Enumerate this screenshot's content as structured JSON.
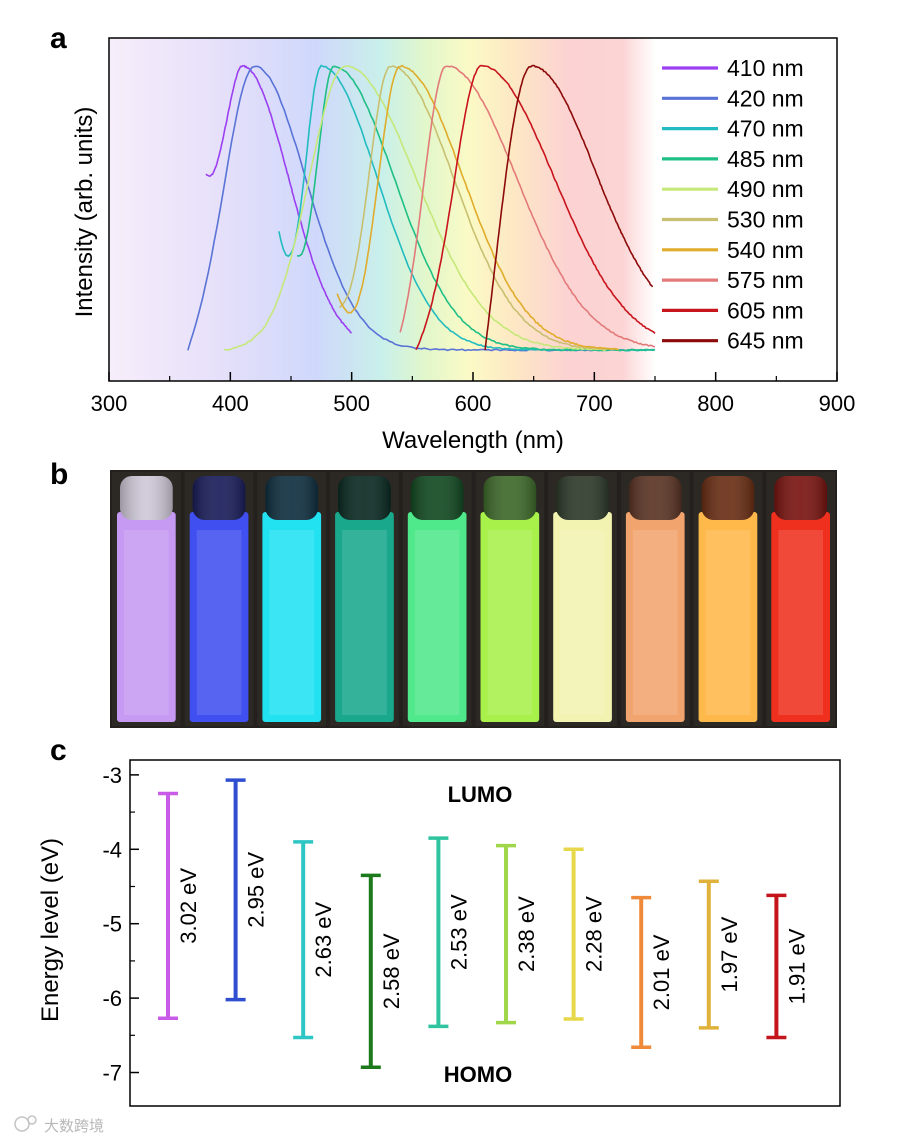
{
  "panels": {
    "a": "a",
    "b": "b",
    "c": "c"
  },
  "colors": {
    "410 nm": "#9b3ff0",
    "420 nm": "#5a73d6",
    "470 nm": "#22bcc0",
    "485 nm": "#1fbf86",
    "490 nm": "#c6e87a",
    "530 nm": "#c8c070",
    "540 nm": "#e0ac2c",
    "575 nm": "#e27a7a",
    "605 nm": "#c8141c",
    "645 nm": "#8c0a0a"
  },
  "chart_data": [
    {
      "type": "line",
      "panel": "a",
      "xlabel": "Wavelength (nm)",
      "ylabel": "Intensity (arb. units)",
      "xlim": [
        300,
        900
      ],
      "xticks": [
        300,
        400,
        500,
        600,
        700,
        800,
        900
      ],
      "x_minor_step": 50,
      "background": "visible-spectrum gradient from 300 to 750 nm",
      "legend_position": "top-right",
      "series": [
        {
          "name": "410 nm",
          "peak": 410,
          "start": 380,
          "end": 500,
          "start_level": 0.62,
          "end_level": 0.0,
          "sigma_left": 18,
          "sigma_right": 38
        },
        {
          "name": "420 nm",
          "peak": 420,
          "start": 365,
          "end": 750,
          "start_level": 0.0,
          "end_level": 0.0,
          "sigma_left": 24,
          "sigma_right": 42
        },
        {
          "name": "470 nm",
          "peak": 475,
          "start": 440,
          "end": 750,
          "start_level": 0.42,
          "end_level": 0.0,
          "sigma_left": 14,
          "sigma_right": 46
        },
        {
          "name": "485 nm",
          "peak": 485,
          "start": 455,
          "end": 750,
          "start_level": 0.33,
          "end_level": 0.0,
          "sigma_left": 14,
          "sigma_right": 50
        },
        {
          "name": "490 nm",
          "peak": 495,
          "start": 395,
          "end": 710,
          "start_level": 0.0,
          "end_level": 0.0,
          "sigma_left": 30,
          "sigma_right": 58
        },
        {
          "name": "530 nm",
          "peak": 532,
          "start": 490,
          "end": 720,
          "start_level": 0.15,
          "end_level": 0.0,
          "sigma_left": 18,
          "sigma_right": 52
        },
        {
          "name": "540 nm",
          "peak": 540,
          "start": 488,
          "end": 720,
          "start_level": 0.2,
          "end_level": 0.0,
          "sigma_left": 18,
          "sigma_right": 52
        },
        {
          "name": "575 nm",
          "peak": 578,
          "start": 540,
          "end": 750,
          "start_level": 0.06,
          "end_level": 0.0,
          "sigma_left": 18,
          "sigma_right": 58
        },
        {
          "name": "605 nm",
          "peak": 607,
          "start": 553,
          "end": 750,
          "start_level": 0.0,
          "end_level": 0.0,
          "sigma_left": 22,
          "sigma_right": 60
        },
        {
          "name": "645 nm",
          "peak": 648,
          "start": 610,
          "end": 748,
          "start_level": 0.0,
          "end_level": 0.03,
          "sigma_left": 22,
          "sigma_right": 55
        }
      ]
    },
    {
      "type": "bar",
      "panel": "c",
      "ylabel": "Energy level (eV)",
      "ylim": [
        -7.45,
        -2.8
      ],
      "yticks": [
        -3,
        -4,
        -5,
        -6,
        -7
      ],
      "yticklabels": [
        "-3",
        "-4",
        "-5",
        "-6",
        "-7"
      ],
      "annotations": [
        "LUMO",
        "HOMO"
      ],
      "bars": [
        {
          "series": "410 nm",
          "lumo": -3.25,
          "homo": -6.27,
          "gap": "3.02 eV"
        },
        {
          "series": "420 nm",
          "lumo": -3.07,
          "homo": -6.02,
          "gap": "2.95 eV"
        },
        {
          "series": "470 nm",
          "lumo": -3.9,
          "homo": -6.53,
          "gap": "2.63 eV"
        },
        {
          "series": "485 nm",
          "lumo": -4.35,
          "homo": -6.93,
          "gap": "2.58 eV"
        },
        {
          "series": "490 nm",
          "lumo": -3.85,
          "homo": -6.38,
          "gap": "2.53 eV"
        },
        {
          "series": "530 nm",
          "lumo": -3.95,
          "homo": -6.33,
          "gap": "2.38 eV"
        },
        {
          "series": "540 nm",
          "lumo": -4.0,
          "homo": -6.28,
          "gap": "2.28 eV"
        },
        {
          "series": "575 nm",
          "lumo": -4.65,
          "homo": -6.66,
          "gap": "2.01 eV"
        },
        {
          "series": "605 nm",
          "lumo": -4.43,
          "homo": -6.4,
          "gap": "1.97 eV"
        },
        {
          "series": "645 nm",
          "lumo": -4.62,
          "homo": -6.53,
          "gap": "1.91 eV"
        }
      ],
      "bar_colors": [
        "#c85be8",
        "#2f4fd0",
        "#2ec5c5",
        "#1c7a1c",
        "#2ec4a0",
        "#a0d64a",
        "#e6d84a",
        "#ee8a3a",
        "#e0b23c",
        "#c4141c"
      ]
    }
  ],
  "photo": {
    "cuvettes": [
      {
        "body": "#c69af2",
        "cap": "#cfc9d8"
      },
      {
        "body": "#3f4ff0",
        "cap": "#1a1d5a"
      },
      {
        "body": "#22e2f2",
        "cap": "#0f2f40"
      },
      {
        "body": "#1aa88c",
        "cap": "#0a2a22"
      },
      {
        "body": "#4fe88a",
        "cap": "#124a22"
      },
      {
        "body": "#a8f04a",
        "cap": "#3e6a2a"
      },
      {
        "body": "#f2f3b0",
        "cap": "#2e3a2a"
      },
      {
        "body": "#f2a46e",
        "cap": "#5a3424"
      },
      {
        "body": "#ffb84a",
        "cap": "#6a2e14"
      },
      {
        "body": "#f0301e",
        "cap": "#7a1410"
      }
    ]
  },
  "watermark": "大数跨境"
}
